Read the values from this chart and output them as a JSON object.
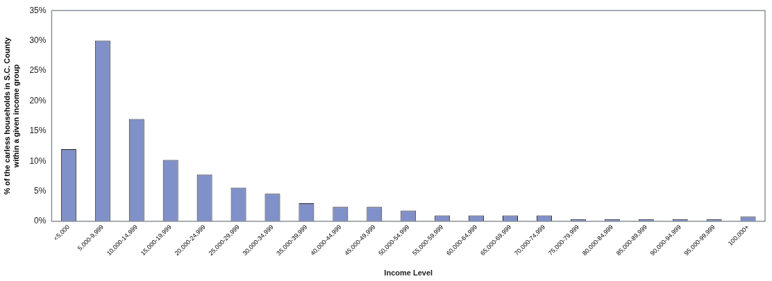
{
  "chart_data": {
    "type": "bar",
    "ylabel": "% of the carless households in S.C. County\nwithin a given income group",
    "xlabel": "Income Level",
    "categories": [
      "<5,000",
      "5,000-9,999",
      "10,000-14,999",
      "15,000-19,999",
      "20,000-24,999",
      "25,000-29,999",
      "30,000-34,999",
      "35,000-39,999",
      "40,000-44,999",
      "45,000-49,999",
      "50,000-54,999",
      "55,000-59,999",
      "60,000-64,999",
      "65,000-69,999",
      "70,000-74,999",
      "75,000-79,999",
      "80,000-84,999",
      "85,000-89,999",
      "90,000-94,999",
      "95,000-99,999",
      "100,000+"
    ],
    "values": [
      12,
      30,
      17,
      10.2,
      7.8,
      5.6,
      4.6,
      3,
      2.4,
      2.4,
      1.8,
      1,
      1,
      1,
      1,
      0.4,
      0.4,
      0.4,
      0.4,
      0.4,
      0.8
    ],
    "color": "#8090c8",
    "ylim": [
      0,
      35
    ],
    "yticks": [
      {
        "value": 0,
        "label": "0%"
      },
      {
        "value": 5,
        "label": "5%"
      },
      {
        "value": 10,
        "label": "10%"
      },
      {
        "value": 15,
        "label": "15%"
      },
      {
        "value": 20,
        "label": "20%"
      },
      {
        "value": 25,
        "label": "25%"
      },
      {
        "value": 30,
        "label": "30%"
      },
      {
        "value": 35,
        "label": "35%"
      }
    ],
    "grid": false,
    "legend": false
  }
}
